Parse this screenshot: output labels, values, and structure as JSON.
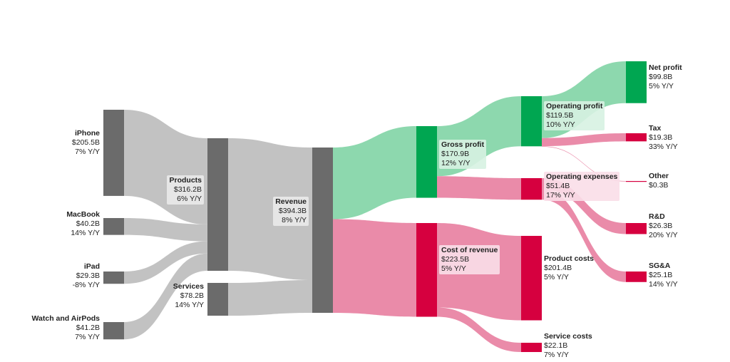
{
  "chart_data": {
    "type": "sankey",
    "unit": "$B",
    "colors": {
      "grey_node": "#6b6b6b",
      "grey_flow": "#c2c2c2",
      "green_node": "#00a651",
      "green_flow": "#8dd8ae",
      "red_node": "#d6003f",
      "red_flow": "#ea8ba9"
    },
    "nodes": [
      {
        "id": "iphone",
        "name": "iPhone",
        "value": "$205.5B",
        "change": "7% Y/Y",
        "amount": 205.5
      },
      {
        "id": "macbook",
        "name": "MacBook",
        "value": "$40.2B",
        "change": "14% Y/Y",
        "amount": 40.2
      },
      {
        "id": "ipad",
        "name": "iPad",
        "value": "$29.3B",
        "change": "-8% Y/Y",
        "amount": 29.3
      },
      {
        "id": "watch",
        "name": "Watch and AirPods",
        "value": "$41.2B",
        "change": "7% Y/Y",
        "amount": 41.2
      },
      {
        "id": "products",
        "name": "Products",
        "value": "$316.2B",
        "change": "6% Y/Y",
        "amount": 316.2
      },
      {
        "id": "services",
        "name": "Services",
        "value": "$78.2B",
        "change": "14% Y/Y",
        "amount": 78.2
      },
      {
        "id": "revenue",
        "name": "Revenue",
        "value": "$394.3B",
        "change": "8% Y/Y",
        "amount": 394.3
      },
      {
        "id": "gross",
        "name": "Gross profit",
        "value": "$170.9B",
        "change": "12% Y/Y",
        "amount": 170.9
      },
      {
        "id": "cor",
        "name": "Cost of revenue",
        "value": "$223.5B",
        "change": "5% Y/Y",
        "amount": 223.5
      },
      {
        "id": "opprofit",
        "name": "Operating profit",
        "value": "$119.5B",
        "change": "10% Y/Y",
        "amount": 119.5
      },
      {
        "id": "opex",
        "name": "Operating expenses",
        "value": "$51.4B",
        "change": "17% Y/Y",
        "amount": 51.4
      },
      {
        "id": "prodcost",
        "name": "Product costs",
        "value": "$201.4B",
        "change": "5% Y/Y",
        "amount": 201.4
      },
      {
        "id": "servcost",
        "name": "Service costs",
        "value": "$22.1B",
        "change": "7% Y/Y",
        "amount": 22.1
      },
      {
        "id": "net",
        "name": "Net profit",
        "value": "$99.8B",
        "change": "5% Y/Y",
        "amount": 99.8
      },
      {
        "id": "tax",
        "name": "Tax",
        "value": "$19.3B",
        "change": "33% Y/Y",
        "amount": 19.3
      },
      {
        "id": "other",
        "name": "Other",
        "value": "$0.3B",
        "change": "",
        "amount": 0.3
      },
      {
        "id": "rnd",
        "name": "R&D",
        "value": "$26.3B",
        "change": "20% Y/Y",
        "amount": 26.3
      },
      {
        "id": "sga",
        "name": "SG&A",
        "value": "$25.1B",
        "change": "14% Y/Y",
        "amount": 25.1
      }
    ],
    "links": [
      {
        "source": "iphone",
        "target": "products",
        "value": 205.5,
        "color": "grey"
      },
      {
        "source": "macbook",
        "target": "products",
        "value": 40.2,
        "color": "grey"
      },
      {
        "source": "ipad",
        "target": "products",
        "value": 29.3,
        "color": "grey"
      },
      {
        "source": "watch",
        "target": "products",
        "value": 41.2,
        "color": "grey"
      },
      {
        "source": "products",
        "target": "revenue",
        "value": 316.2,
        "color": "grey"
      },
      {
        "source": "services",
        "target": "revenue",
        "value": 78.2,
        "color": "grey"
      },
      {
        "source": "revenue",
        "target": "gross",
        "value": 170.9,
        "color": "green"
      },
      {
        "source": "revenue",
        "target": "cor",
        "value": 223.5,
        "color": "red"
      },
      {
        "source": "gross",
        "target": "opprofit",
        "value": 119.5,
        "color": "green"
      },
      {
        "source": "gross",
        "target": "opex",
        "value": 51.4,
        "color": "red"
      },
      {
        "source": "opprofit",
        "target": "net",
        "value": 99.8,
        "color": "green"
      },
      {
        "source": "opprofit",
        "target": "tax",
        "value": 19.3,
        "color": "red"
      },
      {
        "source": "opprofit",
        "target": "other",
        "value": 0.3,
        "color": "red"
      },
      {
        "source": "opex",
        "target": "rnd",
        "value": 26.3,
        "color": "red"
      },
      {
        "source": "opex",
        "target": "sga",
        "value": 25.1,
        "color": "red"
      },
      {
        "source": "cor",
        "target": "prodcost",
        "value": 201.4,
        "color": "red"
      },
      {
        "source": "cor",
        "target": "servcost",
        "value": 22.1,
        "color": "red"
      }
    ]
  }
}
